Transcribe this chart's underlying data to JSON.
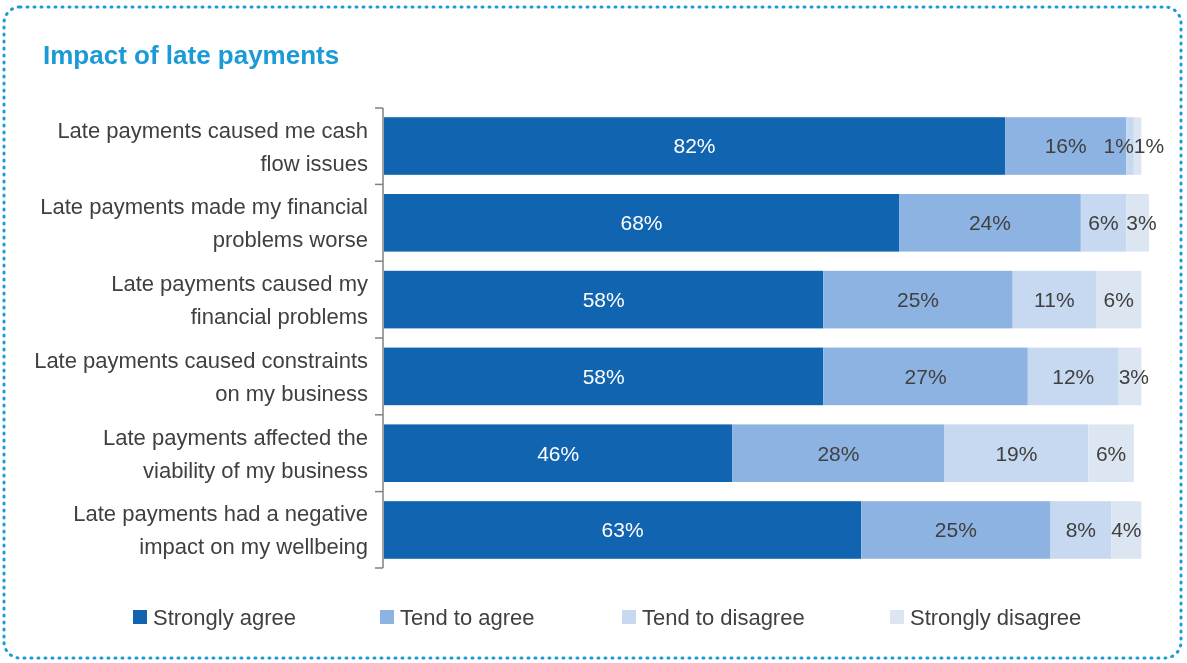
{
  "chart_data": {
    "type": "bar",
    "title": "Impact of late payments",
    "orientation": "horizontal",
    "stacked": true,
    "tick_labels": "y",
    "legend": "bottom",
    "categories": [
      "Late payments caused me cash flow issues",
      "Late payments made my financial problems worse",
      "Late payments caused my financial problems",
      "Late payments caused constraints on my business",
      "Late payments affected the viability of my business",
      "Late payments had a negative impact on my wellbeing"
    ],
    "series": [
      {
        "name": "Strongly agree",
        "color": "#1064b0",
        "values": [
          82,
          68,
          58,
          58,
          46,
          63
        ],
        "value_labels": [
          "82%",
          "68%",
          "58%",
          "58%",
          "46%",
          "63%"
        ]
      },
      {
        "name": "Tend to agree",
        "color": "#8db3e2",
        "values": [
          16,
          24,
          25,
          27,
          28,
          25
        ],
        "value_labels": [
          "16%",
          "24%",
          "25%",
          "27%",
          "28%",
          "25%"
        ]
      },
      {
        "name": "Tend to disagree",
        "color": "#c6d9f1",
        "values": [
          1,
          6,
          11,
          12,
          19,
          8
        ],
        "value_labels": [
          "1%",
          "6%",
          "11%",
          "12%",
          "19%",
          "8%"
        ]
      },
      {
        "name": "Strongly disagree",
        "color": "#dce6f2",
        "values": [
          1,
          3,
          6,
          3,
          6,
          4
        ],
        "value_labels": [
          "1%",
          "3%",
          "6%",
          "3%",
          "6%",
          "4%"
        ]
      }
    ]
  }
}
